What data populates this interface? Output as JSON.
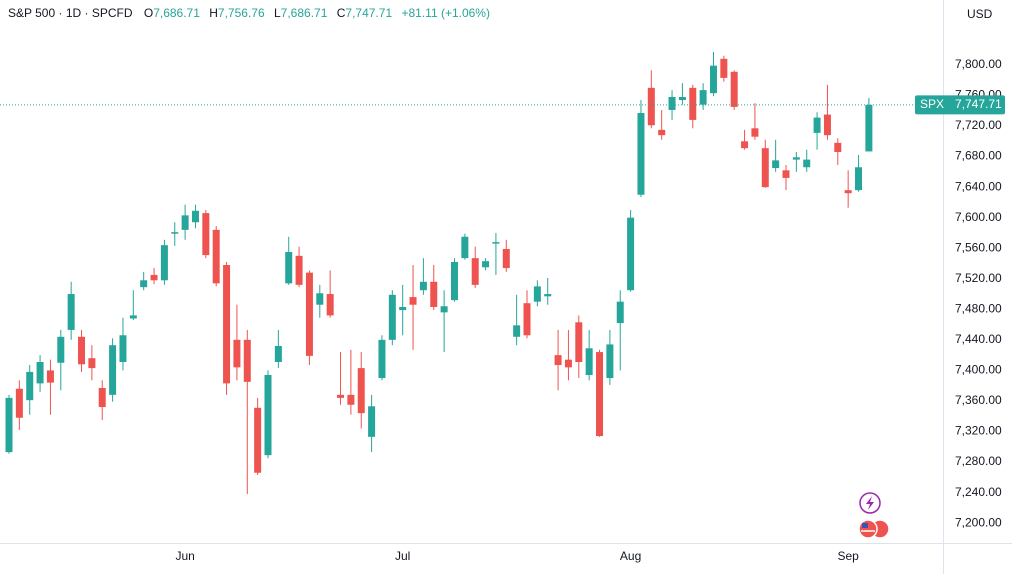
{
  "chart_data": {
    "type": "candlestick",
    "header": {
      "symbol": "S&P 500 · 1D · SPCFD",
      "ohlc": [
        {
          "label": "O",
          "value": "7,686.71"
        },
        {
          "label": "H",
          "value": "7,756.76"
        },
        {
          "label": "L",
          "value": "7,686.71"
        },
        {
          "label": "C",
          "value": "7,747.71"
        }
      ],
      "change": "+81.11 (+1.06%)"
    },
    "currency": "USD",
    "price_line": {
      "name": "SPX",
      "value": 7747.71,
      "label": "7,747.71"
    },
    "up_color": "#26a69a",
    "down_color": "#ef5350",
    "grid": false,
    "categories": [
      null,
      null,
      null,
      null,
      null,
      null,
      null,
      null,
      null,
      null,
      null,
      null,
      null,
      null,
      null,
      null,
      null,
      "Jun",
      null,
      null,
      null,
      null,
      null,
      null,
      null,
      null,
      null,
      null,
      null,
      null,
      null,
      null,
      null,
      null,
      null,
      null,
      null,
      null,
      "Jul",
      null,
      null,
      null,
      null,
      null,
      null,
      null,
      null,
      null,
      null,
      null,
      null,
      null,
      null,
      null,
      null,
      null,
      null,
      null,
      null,
      null,
      "Aug",
      null,
      null,
      null,
      null,
      null,
      null,
      null,
      null,
      null,
      null,
      null,
      null,
      null,
      null,
      null,
      null,
      null,
      null,
      null,
      null,
      "Sep",
      null,
      null
    ],
    "open": [
      7293,
      7376,
      7361,
      7383,
      7400,
      7410,
      7453,
      7444,
      7416,
      7377,
      7368,
      7411,
      7468,
      7509,
      7525,
      7518,
      7579,
      7584,
      7594,
      7606,
      7584,
      7538,
      7440,
      7440,
      7351,
      7289,
      7411,
      7514,
      7550,
      7528,
      7486,
      7500,
      7368,
      7368,
      7403,
      7313,
      7390,
      7440,
      7479,
      7496,
      7505,
      7516,
      7476,
      7492,
      7547,
      7547,
      7535,
      7566,
      7559,
      7444,
      7488,
      7490,
      7497,
      7420,
      7414,
      7463,
      7394,
      7424,
      7390,
      7462,
      7505,
      7630,
      7770,
      7715,
      7741,
      7754,
      7770,
      7748,
      7763,
      7808,
      7791,
      7700,
      7717,
      7691,
      7665,
      7662,
      7676,
      7666,
      7711,
      7735,
      7698,
      7636,
      7636,
      7686.71
    ],
    "high": [
      7368,
      7387,
      7407,
      7420,
      7414,
      7453,
      7516,
      7453,
      7433,
      7387,
      7442,
      7469,
      7505,
      7529,
      7534,
      7571,
      7594,
      7617,
      7617,
      7610,
      7589,
      7542,
      7486,
      7453,
      7364,
      7400,
      7453,
      7575,
      7562,
      7531,
      7512,
      7531,
      7424,
      7427,
      7424,
      7368,
      7446,
      7505,
      7512,
      7538,
      7547,
      7538,
      7505,
      7547,
      7579,
      7562,
      7547,
      7580,
      7571,
      7499,
      7505,
      7518,
      7521,
      7453,
      7453,
      7472,
      7453,
      7427,
      7453,
      7505,
      7610,
      7754,
      7793,
      7741,
      7767,
      7776,
      7774,
      7776,
      7817,
      7812,
      7793,
      7715,
      7750,
      7702,
      7702,
      7669,
      7686,
      7689,
      7738,
      7774,
      7704,
      7662,
      7682,
      7756.76
    ],
    "low": [
      7291,
      7322,
      7342,
      7372,
      7342,
      7374,
      7440,
      7398,
      7387,
      7335,
      7359,
      7400,
      7466,
      7505,
      7513,
      7512,
      7563,
      7571,
      7586,
      7547,
      7510,
      7368,
      7387,
      7238,
      7263,
      7285,
      7403,
      7512,
      7509,
      7407,
      7469,
      7469,
      7355,
      7342,
      7324,
      7293,
      7387,
      7433,
      7446,
      7427,
      7499,
      7479,
      7424,
      7490,
      7545,
      7508,
      7531,
      7525,
      7529,
      7433,
      7442,
      7484,
      7486,
      7374,
      7387,
      7390,
      7387,
      7313,
      7381,
      7400,
      7503,
      7627,
      7717,
      7702,
      7728,
      7748,
      7717,
      7741,
      7759,
      7778,
      7741,
      7689,
      7702,
      7639,
      7660,
      7636,
      7660,
      7660,
      7689,
      7702,
      7669,
      7613,
      7634,
      7686.71
    ],
    "close": [
      7364,
      7338,
      7398,
      7411,
      7384,
      7444,
      7500,
      7408,
      7403,
      7352,
      7433,
      7446,
      7472,
      7518,
      7518,
      7564,
      7581,
      7603,
      7609,
      7551,
      7514,
      7383,
      7404,
      7385,
      7266,
      7394,
      7432,
      7555,
      7512,
      7419,
      7501,
      7472,
      7364,
      7355,
      7344,
      7353,
      7440,
      7499,
      7483,
      7486,
      7516,
      7483,
      7484,
      7542,
      7575,
      7512,
      7543,
      7568,
      7534,
      7459,
      7446,
      7510,
      7500,
      7407,
      7404,
      7411,
      7429,
      7314,
      7434,
      7490,
      7600,
      7737,
      7721,
      7708,
      7758,
      7758,
      7728,
      7767,
      7799,
      7783,
      7745,
      7691,
      7706,
      7640,
      7675,
      7652,
      7679,
      7676,
      7731,
      7708,
      7686,
      7632,
      7666,
      7747.71
    ],
    "ylim": [
      7174,
      7885
    ],
    "yticks": [
      {
        "value": 7200,
        "label": "7,200.00"
      },
      {
        "value": 7240,
        "label": "7,240.00"
      },
      {
        "value": 7280,
        "label": "7,280.00"
      },
      {
        "value": 7320,
        "label": "7,320.00"
      },
      {
        "value": 7360,
        "label": "7,360.00"
      },
      {
        "value": 7400,
        "label": "7,400.00"
      },
      {
        "value": 7440,
        "label": "7,440.00"
      },
      {
        "value": 7480,
        "label": "7,480.00"
      },
      {
        "value": 7520,
        "label": "7,520.00"
      },
      {
        "value": 7560,
        "label": "7,560.00"
      },
      {
        "value": 7600,
        "label": "7,600.00"
      },
      {
        "value": 7640,
        "label": "7,640.00"
      },
      {
        "value": 7680,
        "label": "7,680.00"
      },
      {
        "value": 7720,
        "label": "7,720.00"
      },
      {
        "value": 7760,
        "label": "7,760.00"
      },
      {
        "value": 7800,
        "label": "7,800.00"
      }
    ]
  }
}
